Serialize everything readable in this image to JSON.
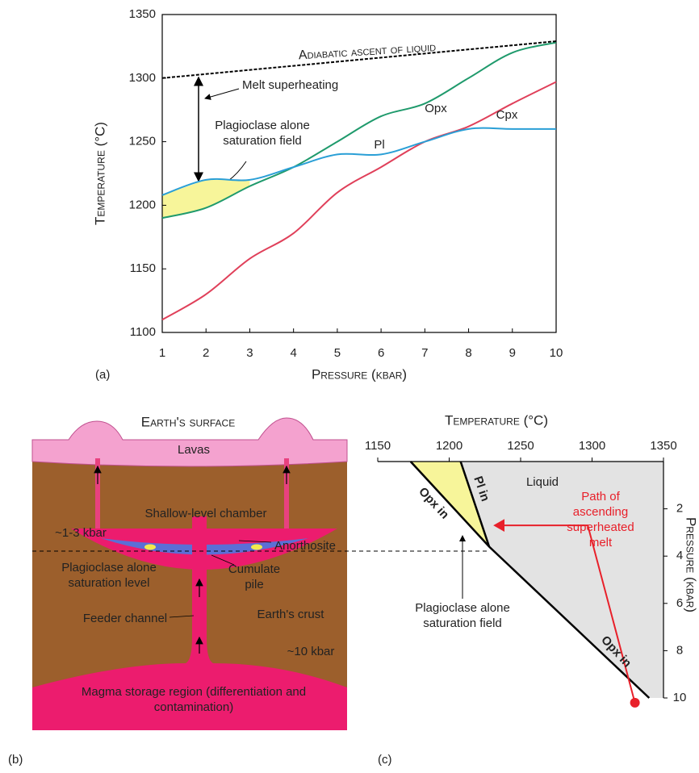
{
  "chart_data": [
    {
      "type": "line",
      "panel_label": "(a)",
      "x_label": "Pressure (kbar)",
      "y_label": "Temperature (°C)",
      "xlim": [
        1,
        10
      ],
      "xticks": [
        1,
        2,
        3,
        4,
        5,
        6,
        7,
        8,
        9,
        10
      ],
      "ylim": [
        1100,
        1350
      ],
      "yticks": [
        1100,
        1150,
        1200,
        1250,
        1300,
        1350
      ],
      "x": [
        1,
        2,
        3,
        4,
        5,
        6,
        7,
        8,
        9,
        10
      ],
      "series": [
        {
          "name": "Opx",
          "color": "#1f9a6c",
          "values": [
            1190,
            1198,
            1215,
            1230,
            1250,
            1270,
            1280,
            1300,
            1320,
            1328
          ]
        },
        {
          "name": "Cpx",
          "color": "#e0405a",
          "values": [
            1110,
            1130,
            1158,
            1178,
            1210,
            1230,
            1250,
            1262,
            1280,
            1297
          ]
        },
        {
          "name": "Pl",
          "color": "#2a9fd6",
          "values": [
            1208,
            1220,
            1220,
            1230,
            1240,
            1240,
            1250,
            1260,
            1260,
            1260
          ]
        }
      ],
      "reference_line": {
        "name": "Adiabatic ascent of liquid",
        "x": [
          1,
          10
        ],
        "values": [
          1300,
          1329
        ]
      },
      "fill_color": "#f7f59a",
      "annotations": [
        "Melt superheating",
        "Plagioclase alone saturation field"
      ]
    },
    {
      "type": "phase_diagram",
      "panel_label": "(c)",
      "x_label": "Temperature (°C)",
      "y_label": "Pressure (kbar)",
      "xlim": [
        1150,
        1350
      ],
      "xticks": [
        1150,
        1200,
        1250,
        1300,
        1350
      ],
      "ylim": [
        0,
        10
      ],
      "yticks": [
        2,
        4,
        6,
        8,
        10
      ],
      "y_inverted": true,
      "series": [
        {
          "name": "Opx in",
          "color": "#000000",
          "x": [
            1173,
            1228,
            1340
          ],
          "values": [
            0,
            3.6,
            10
          ]
        },
        {
          "name": "Pl in",
          "color": "#000000",
          "x": [
            1208,
            1228
          ],
          "values": [
            0,
            3.6
          ]
        },
        {
          "name": "Path of ascending superheated melt",
          "color": "#e8202a",
          "x": [
            1330,
            1297,
            1232
          ],
          "values": [
            10.2,
            2.7,
            2.7
          ]
        }
      ],
      "field_labels": [
        "Liquid",
        "Plagioclase alone saturation field"
      ],
      "liquid_color": "#e3e3e3",
      "field_color": "#f7f59a"
    }
  ],
  "diagram": {
    "panel_label": "(b)",
    "surface": "Earth's surface",
    "lavas": "Lavas",
    "chamber": "Shallow-level chamber",
    "chamber_pressure": "~1-3 kbar",
    "anorthosite": "Anorthosite",
    "saturation_level": "Plagioclase alone saturation level",
    "cumulate": "Cumulate pile",
    "feeder": "Feeder channel",
    "crust": "Earth's crust",
    "deep_pressure": "~10 kbar",
    "storage": "Magma storage region (differentiation and contamination)"
  }
}
